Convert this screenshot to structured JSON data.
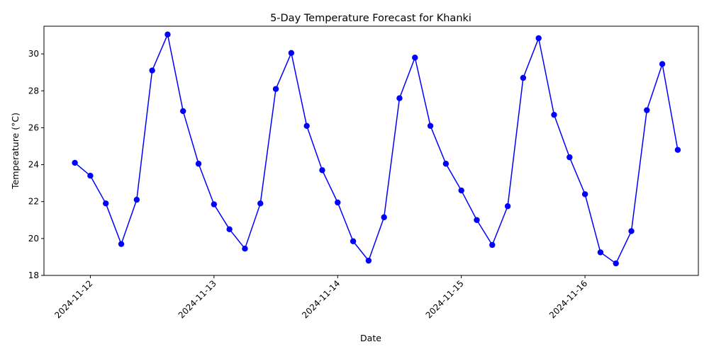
{
  "chart_data": {
    "type": "line",
    "title": "5-Day Temperature Forecast for Khanki",
    "xlabel": "Date",
    "ylabel": "Temperature (°C)",
    "x_tick_labels": [
      "2024-11-12",
      "2024-11-13",
      "2024-11-14",
      "2024-11-15",
      "2024-11-16"
    ],
    "x_tick_values": [
      "2024-11-12 00:00",
      "2024-11-13 00:00",
      "2024-11-14 00:00",
      "2024-11-15 00:00",
      "2024-11-16 00:00"
    ],
    "x_range": [
      "2024-11-11 15:00",
      "2024-11-16 22:00"
    ],
    "ylim": [
      18,
      31.5
    ],
    "y_ticks": [
      18,
      20,
      22,
      24,
      26,
      28,
      30
    ],
    "grid": false,
    "legend": "none",
    "color": "#0000ff",
    "marker": "circle",
    "series": [
      {
        "x": [
          "2024-11-11 21:00",
          "2024-11-12 00:00",
          "2024-11-12 03:00",
          "2024-11-12 06:00",
          "2024-11-12 09:00",
          "2024-11-12 12:00",
          "2024-11-12 15:00",
          "2024-11-12 18:00",
          "2024-11-12 21:00",
          "2024-11-13 00:00",
          "2024-11-13 03:00",
          "2024-11-13 06:00",
          "2024-11-13 09:00",
          "2024-11-13 12:00",
          "2024-11-13 15:00",
          "2024-11-13 18:00",
          "2024-11-13 21:00",
          "2024-11-14 00:00",
          "2024-11-14 03:00",
          "2024-11-14 06:00",
          "2024-11-14 09:00",
          "2024-11-14 12:00",
          "2024-11-14 15:00",
          "2024-11-14 18:00",
          "2024-11-14 21:00",
          "2024-11-15 00:00",
          "2024-11-15 03:00",
          "2024-11-15 06:00",
          "2024-11-15 09:00",
          "2024-11-15 12:00",
          "2024-11-15 15:00",
          "2024-11-15 18:00",
          "2024-11-15 21:00",
          "2024-11-16 00:00",
          "2024-11-16 03:00",
          "2024-11-16 06:00",
          "2024-11-16 09:00",
          "2024-11-16 12:00",
          "2024-11-16 15:00",
          "2024-11-16 18:00"
        ],
        "y": [
          24.1,
          23.4,
          21.9,
          19.7,
          22.1,
          29.1,
          31.05,
          26.9,
          24.05,
          21.85,
          20.5,
          19.45,
          21.9,
          28.1,
          30.05,
          26.1,
          23.7,
          21.95,
          19.85,
          18.8,
          21.15,
          27.6,
          29.8,
          26.1,
          24.05,
          22.6,
          21.0,
          19.65,
          21.75,
          28.7,
          30.85,
          26.7,
          24.4,
          22.4,
          19.25,
          18.65,
          20.4,
          26.95,
          29.45,
          24.8
        ]
      }
    ]
  }
}
